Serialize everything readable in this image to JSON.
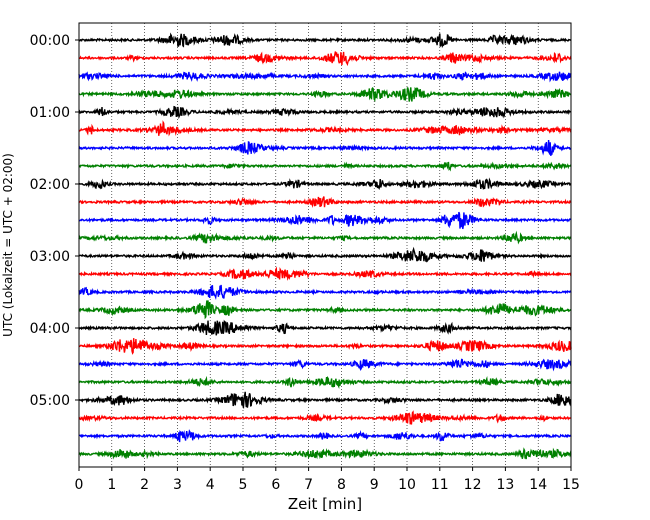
{
  "chart_data": {
    "type": "line",
    "title": "",
    "xlabel": "Zeit  [min]",
    "ylabel": "UTC (Lokalzeit = UTC + 02:00)",
    "xlim": [
      0,
      15
    ],
    "x_ticks": [
      "0",
      "1",
      "2",
      "3",
      "4",
      "5",
      "6",
      "7",
      "8",
      "9",
      "10",
      "11",
      "12",
      "13",
      "14",
      "15"
    ],
    "y_tick_labels": [
      "00:00",
      "01:00",
      "02:00",
      "03:00",
      "04:00",
      "05:00"
    ],
    "grid": "vertical dotted at each minute",
    "trace_colors": [
      "#000000",
      "#ff0000",
      "#0000ff",
      "#008000"
    ],
    "trace_interval_min": 15,
    "rows": 24,
    "series": [
      {
        "start": "00:00",
        "color": "#000000"
      },
      {
        "start": "00:15",
        "color": "#ff0000"
      },
      {
        "start": "00:30",
        "color": "#0000ff"
      },
      {
        "start": "00:45",
        "color": "#008000"
      },
      {
        "start": "01:00",
        "color": "#000000"
      },
      {
        "start": "01:15",
        "color": "#ff0000"
      },
      {
        "start": "01:30",
        "color": "#0000ff"
      },
      {
        "start": "01:45",
        "color": "#008000"
      },
      {
        "start": "02:00",
        "color": "#000000"
      },
      {
        "start": "02:15",
        "color": "#ff0000"
      },
      {
        "start": "02:30",
        "color": "#0000ff"
      },
      {
        "start": "02:45",
        "color": "#008000"
      },
      {
        "start": "03:00",
        "color": "#000000"
      },
      {
        "start": "03:15",
        "color": "#ff0000"
      },
      {
        "start": "03:30",
        "color": "#0000ff"
      },
      {
        "start": "03:45",
        "color": "#008000"
      },
      {
        "start": "04:00",
        "color": "#000000"
      },
      {
        "start": "04:15",
        "color": "#ff0000"
      },
      {
        "start": "04:30",
        "color": "#0000ff"
      },
      {
        "start": "04:45",
        "color": "#008000"
      },
      {
        "start": "05:00",
        "color": "#000000"
      },
      {
        "start": "05:15",
        "color": "#ff0000"
      },
      {
        "start": "05:30",
        "color": "#0000ff"
      },
      {
        "start": "05:45",
        "color": "#008000"
      }
    ]
  }
}
